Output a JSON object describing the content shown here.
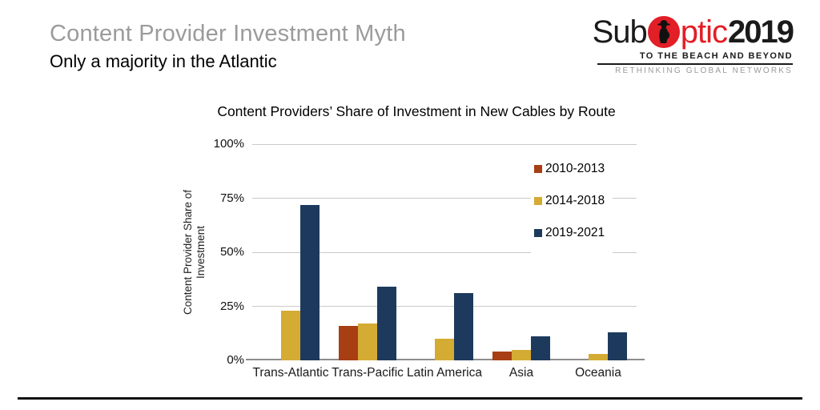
{
  "slide": {
    "title": "Content Provider Investment Myth",
    "subtitle": "Only a majority in the Atlantic",
    "title_color": "#9b9b9b"
  },
  "logo": {
    "sub": "Sub",
    "ptic": "ptic",
    "year": "2019",
    "tagline": "TO THE BEACH AND BEYOND",
    "subtagline": "RETHINKING GLOBAL NETWORKS",
    "accent_red": "#E21E26"
  },
  "chart_data": {
    "type": "bar",
    "title": "Content Providers’ Share of Investment in New Cables by Route",
    "ylabel_line1": "Content Provider Share of",
    "ylabel_line2": "Investment",
    "categories": [
      "Trans-Atlantic",
      "Trans-Pacific",
      "Latin America",
      "Asia",
      "Oceania"
    ],
    "series": [
      {
        "name": "2010-2013",
        "color": "#A83E14",
        "values": [
          0,
          16,
          0,
          4,
          0
        ]
      },
      {
        "name": "2014-2018",
        "color": "#D4AB33",
        "values": [
          23,
          17,
          10,
          5,
          3
        ]
      },
      {
        "name": "2019-2021",
        "color": "#1D3A5C",
        "values": [
          72,
          34,
          31,
          11,
          13
        ]
      }
    ],
    "yticks": [
      0,
      25,
      50,
      75,
      100
    ],
    "ytick_suffix": "%",
    "ylim": [
      0,
      100
    ],
    "grid": true,
    "legend_position": "inside-right",
    "gridline_color": "#c9c9c9",
    "axis_line_color": "#8c8c8c"
  }
}
